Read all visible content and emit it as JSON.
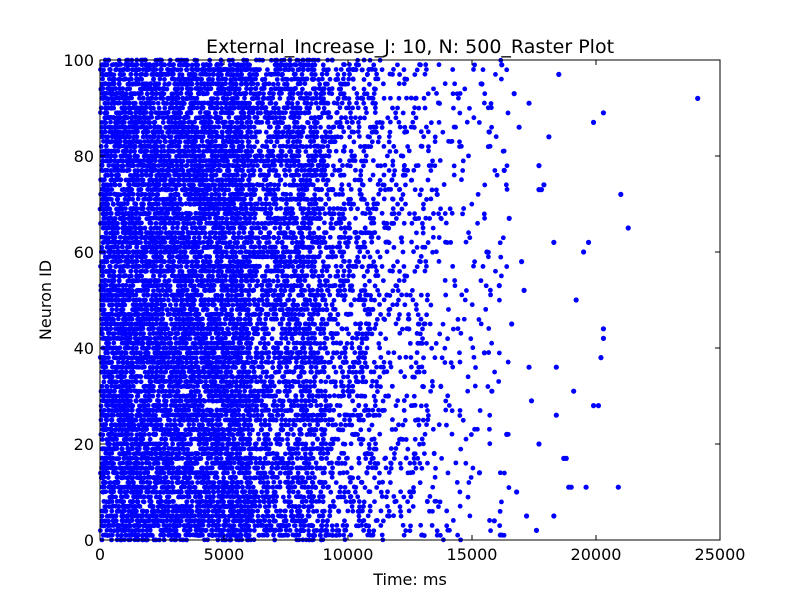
{
  "chart_data": {
    "type": "scatter",
    "title": "External_Increase_J: 10, N: 500_Raster Plot",
    "xlabel": "Time: ms",
    "ylabel": "Neuron ID",
    "xlim": [
      0,
      25000
    ],
    "ylim": [
      0,
      100
    ],
    "xticks": [
      0,
      5000,
      10000,
      15000,
      20000,
      25000
    ],
    "yticks": [
      0,
      20,
      40,
      60,
      80,
      100
    ],
    "grid": false,
    "legend": "none",
    "marker_color": "#0000ff",
    "series": [
      {
        "points": [
          [
            24100,
            92
          ],
          [
            21300,
            65
          ],
          [
            21000,
            72
          ],
          [
            20900,
            11
          ],
          [
            20300,
            89
          ],
          [
            20200,
            38
          ],
          [
            20300,
            44
          ],
          [
            20300,
            42
          ],
          [
            20100,
            28
          ],
          [
            19900,
            28
          ],
          [
            19900,
            87
          ],
          [
            19700,
            62
          ],
          [
            19600,
            11
          ],
          [
            19500,
            60
          ],
          [
            19200,
            50
          ],
          [
            19100,
            31
          ],
          [
            19000,
            11
          ],
          [
            18900,
            11
          ],
          [
            18800,
            17
          ],
          [
            18700,
            17
          ],
          [
            18500,
            97
          ],
          [
            18400,
            36
          ],
          [
            18400,
            26
          ],
          [
            18300,
            5
          ],
          [
            18300,
            62
          ],
          [
            18100,
            84
          ],
          [
            17900,
            74
          ],
          [
            17800,
            73
          ],
          [
            17700,
            73
          ],
          [
            17700,
            20
          ],
          [
            17700,
            78
          ],
          [
            17600,
            2
          ],
          [
            17400,
            29
          ],
          [
            17300,
            36
          ],
          [
            17300,
            91
          ],
          [
            17200,
            5
          ],
          [
            17100,
            52
          ],
          [
            17000,
            58
          ],
          [
            16900,
            86
          ],
          [
            16800,
            10
          ],
          [
            16700,
            93
          ],
          [
            16600,
            45
          ],
          [
            16500,
            67
          ],
          [
            16400,
            22
          ],
          [
            16300,
            77
          ],
          [
            16200,
            99
          ],
          [
            16100,
            53
          ],
          [
            15900,
            4
          ],
          [
            15800,
            31
          ],
          [
            15700,
            85
          ],
          [
            15600,
            60
          ],
          [
            15500,
            39
          ],
          [
            15400,
            95
          ],
          [
            15300,
            14
          ]
        ]
      }
    ]
  }
}
